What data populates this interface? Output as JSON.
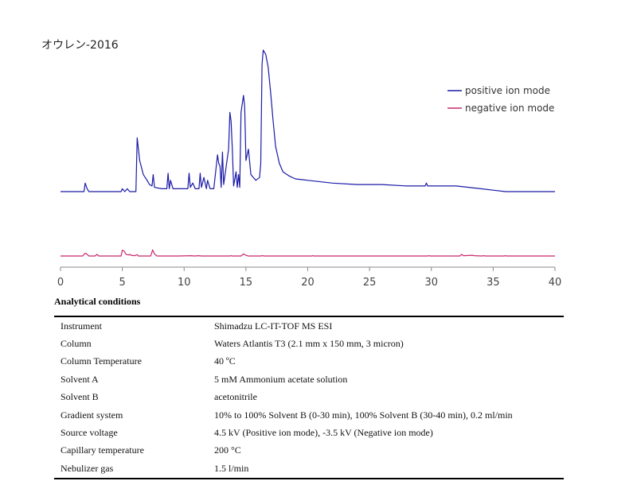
{
  "chart_data": {
    "type": "line",
    "title": "オウレン-2016",
    "xlabel": "",
    "ylabel": "",
    "xlim": [
      0,
      40
    ],
    "xticks": [
      0,
      5,
      10,
      15,
      20,
      25,
      30,
      35,
      40
    ],
    "legend_position": "top-right",
    "series": [
      {
        "name": "positive ion mode",
        "color": "#1a1aa8",
        "points": [
          [
            0,
            0
          ],
          [
            1.9,
            0
          ],
          [
            2.0,
            0.06
          ],
          [
            2.15,
            0.02
          ],
          [
            2.3,
            0
          ],
          [
            4.9,
            0
          ],
          [
            5.0,
            0.02
          ],
          [
            5.2,
            0
          ],
          [
            5.4,
            0.02
          ],
          [
            5.6,
            0
          ],
          [
            6.1,
            0
          ],
          [
            6.2,
            0.38
          ],
          [
            6.4,
            0.22
          ],
          [
            6.7,
            0.12
          ],
          [
            7.0,
            0.08
          ],
          [
            7.2,
            0.05
          ],
          [
            7.4,
            0.04
          ],
          [
            7.5,
            0.12
          ],
          [
            7.6,
            0.03
          ],
          [
            8.2,
            0.02
          ],
          [
            8.6,
            0.02
          ],
          [
            8.7,
            0.13
          ],
          [
            8.8,
            0.02
          ],
          [
            8.9,
            0.08
          ],
          [
            9.1,
            0.02
          ],
          [
            10.0,
            0.02
          ],
          [
            10.3,
            0.02
          ],
          [
            10.4,
            0.13
          ],
          [
            10.5,
            0.03
          ],
          [
            10.7,
            0.06
          ],
          [
            10.9,
            0.02
          ],
          [
            11.2,
            0.02
          ],
          [
            11.3,
            0.13
          ],
          [
            11.4,
            0.03
          ],
          [
            11.6,
            0.1
          ],
          [
            11.8,
            0.02
          ],
          [
            11.9,
            0.08
          ],
          [
            12.1,
            0.02
          ],
          [
            12.4,
            0.02
          ],
          [
            12.7,
            0.26
          ],
          [
            12.8,
            0.2
          ],
          [
            12.9,
            0.18
          ],
          [
            13.0,
            0.03
          ],
          [
            13.1,
            0.28
          ],
          [
            13.2,
            0.05
          ],
          [
            13.6,
            0.3
          ],
          [
            13.7,
            0.56
          ],
          [
            13.8,
            0.5
          ],
          [
            13.9,
            0.3
          ],
          [
            14.0,
            0.04
          ],
          [
            14.2,
            0.14
          ],
          [
            14.3,
            0.03
          ],
          [
            14.4,
            0.12
          ],
          [
            14.5,
            0.03
          ],
          [
            14.6,
            0.56
          ],
          [
            14.8,
            0.68
          ],
          [
            14.9,
            0.6
          ],
          [
            15.0,
            0.22
          ],
          [
            15.2,
            0.3
          ],
          [
            15.4,
            0.12
          ],
          [
            15.8,
            0.08
          ],
          [
            16.1,
            0.1
          ],
          [
            16.2,
            0.2
          ],
          [
            16.3,
            0.9
          ],
          [
            16.4,
            1.0
          ],
          [
            16.6,
            0.97
          ],
          [
            16.8,
            0.88
          ],
          [
            17.0,
            0.7
          ],
          [
            17.2,
            0.5
          ],
          [
            17.4,
            0.32
          ],
          [
            17.7,
            0.2
          ],
          [
            18.0,
            0.14
          ],
          [
            18.5,
            0.11
          ],
          [
            19,
            0.09
          ],
          [
            20,
            0.08
          ],
          [
            22,
            0.06
          ],
          [
            24,
            0.05
          ],
          [
            26,
            0.05
          ],
          [
            28,
            0.04
          ],
          [
            29.5,
            0.04
          ],
          [
            29.6,
            0.06
          ],
          [
            29.7,
            0.04
          ],
          [
            32,
            0.04
          ],
          [
            34,
            0.02
          ],
          [
            35,
            0.01
          ],
          [
            36,
            0
          ],
          [
            40,
            0
          ]
        ]
      },
      {
        "name": "negative ion mode",
        "color": "#c8286c",
        "points": [
          [
            0,
            0
          ],
          [
            1.8,
            0
          ],
          [
            1.95,
            0.07
          ],
          [
            2.05,
            0.08
          ],
          [
            2.2,
            0.03
          ],
          [
            2.3,
            0
          ],
          [
            2.8,
            0
          ],
          [
            2.95,
            0.05
          ],
          [
            3.1,
            0
          ],
          [
            4.9,
            0
          ],
          [
            5.0,
            0.17
          ],
          [
            5.15,
            0.14
          ],
          [
            5.3,
            0.05
          ],
          [
            5.5,
            0.03
          ],
          [
            5.6,
            0.05
          ],
          [
            5.7,
            0.02
          ],
          [
            6.0,
            0.01
          ],
          [
            6.2,
            0.04
          ],
          [
            6.3,
            0
          ],
          [
            7.3,
            0
          ],
          [
            7.45,
            0.18
          ],
          [
            7.6,
            0.06
          ],
          [
            7.8,
            0
          ],
          [
            9.5,
            0
          ],
          [
            10.6,
            0.01
          ],
          [
            10.8,
            0
          ],
          [
            11.2,
            0.01
          ],
          [
            11.4,
            0
          ],
          [
            13.7,
            0
          ],
          [
            13.8,
            0.01
          ],
          [
            13.9,
            0
          ],
          [
            14.6,
            0
          ],
          [
            14.8,
            0.06
          ],
          [
            15.0,
            0.02
          ],
          [
            15.2,
            0
          ],
          [
            16.2,
            0
          ],
          [
            16.3,
            0.01
          ],
          [
            16.5,
            0
          ],
          [
            20.3,
            0
          ],
          [
            20.4,
            0.01
          ],
          [
            20.5,
            0
          ],
          [
            29.7,
            0
          ],
          [
            29.8,
            0.01
          ],
          [
            29.9,
            0
          ],
          [
            32.3,
            0
          ],
          [
            32.45,
            0.05
          ],
          [
            32.6,
            0.01
          ],
          [
            33.3,
            0.02
          ],
          [
            33.5,
            0.01
          ],
          [
            34.1,
            0
          ],
          [
            34.2,
            0.01
          ],
          [
            34.4,
            0
          ],
          [
            35.9,
            0
          ],
          [
            36.0,
            0.01
          ],
          [
            36.1,
            0
          ],
          [
            40,
            0
          ]
        ]
      }
    ]
  },
  "conditions": {
    "heading": "Analytical conditions",
    "rows": [
      {
        "param": "Instrument",
        "value": "Shimadzu LC-IT-TOF MS ESI"
      },
      {
        "param": "Column",
        "value": "Waters Atlantis T3 (2.1 mm x 150 mm, 3 micron)"
      },
      {
        "param": "Column Temperature",
        "value": "40 ºC"
      },
      {
        "param": "Solvent A",
        "value": "5 mM Ammonium acetate solution"
      },
      {
        "param": "Solvent B",
        "value": "acetonitrile"
      },
      {
        "param": "Gradient system",
        "value": "10% to 100% Solvent B (0-30 min), 100% Solvent B (30-40 min), 0.2 ml/min"
      },
      {
        "param": "Source voltage",
        "value": "4.5 kV (Positive ion mode), -3.5 kV (Negative ion mode)"
      },
      {
        "param": "Capillary temperature",
        "value": "200 °C"
      },
      {
        "param": "Nebulizer gas",
        "value": "1.5 l/min"
      }
    ]
  }
}
